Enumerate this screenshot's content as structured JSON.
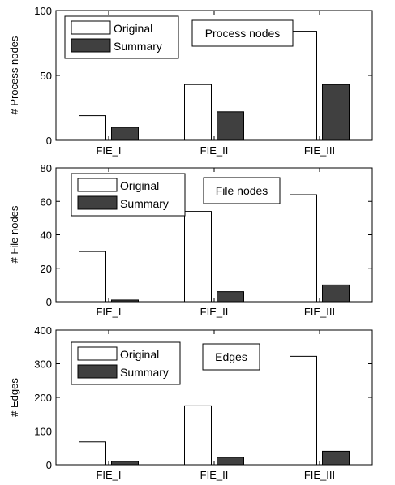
{
  "chart_data": [
    {
      "type": "bar",
      "categories": [
        "FIE_I",
        "FIE_II",
        "FIE_III"
      ],
      "series": [
        {
          "name": "Original",
          "values": [
            19,
            43,
            84
          ],
          "color": "#ffffff"
        },
        {
          "name": "Summary",
          "values": [
            10,
            22,
            43
          ],
          "color": "#404040"
        }
      ],
      "ylabel": "# Process nodes",
      "ylim": [
        0,
        100
      ],
      "yticks": [
        0,
        50,
        100
      ],
      "annotation": "Process nodes",
      "legend": "top-left",
      "grid": false
    },
    {
      "type": "bar",
      "categories": [
        "FIE_I",
        "FIE_II",
        "FIE_III"
      ],
      "series": [
        {
          "name": "Original",
          "values": [
            30,
            54,
            64
          ],
          "color": "#ffffff"
        },
        {
          "name": "Summary",
          "values": [
            1,
            6,
            10
          ],
          "color": "#404040"
        }
      ],
      "ylabel": "# File nodes",
      "ylim": [
        0,
        80
      ],
      "yticks": [
        0,
        20,
        40,
        60,
        80
      ],
      "annotation": "File nodes",
      "legend": "top-left",
      "grid": false
    },
    {
      "type": "bar",
      "categories": [
        "FIE_I",
        "FIE_II",
        "FIE_III"
      ],
      "series": [
        {
          "name": "Original",
          "values": [
            68,
            175,
            322
          ],
          "color": "#ffffff"
        },
        {
          "name": "Summary",
          "values": [
            10,
            22,
            40
          ],
          "color": "#404040"
        }
      ],
      "ylabel": "# Edges",
      "ylim": [
        0,
        400
      ],
      "yticks": [
        0,
        100,
        200,
        300,
        400
      ],
      "annotation": "Edges",
      "legend": "top-left",
      "grid": false
    }
  ]
}
